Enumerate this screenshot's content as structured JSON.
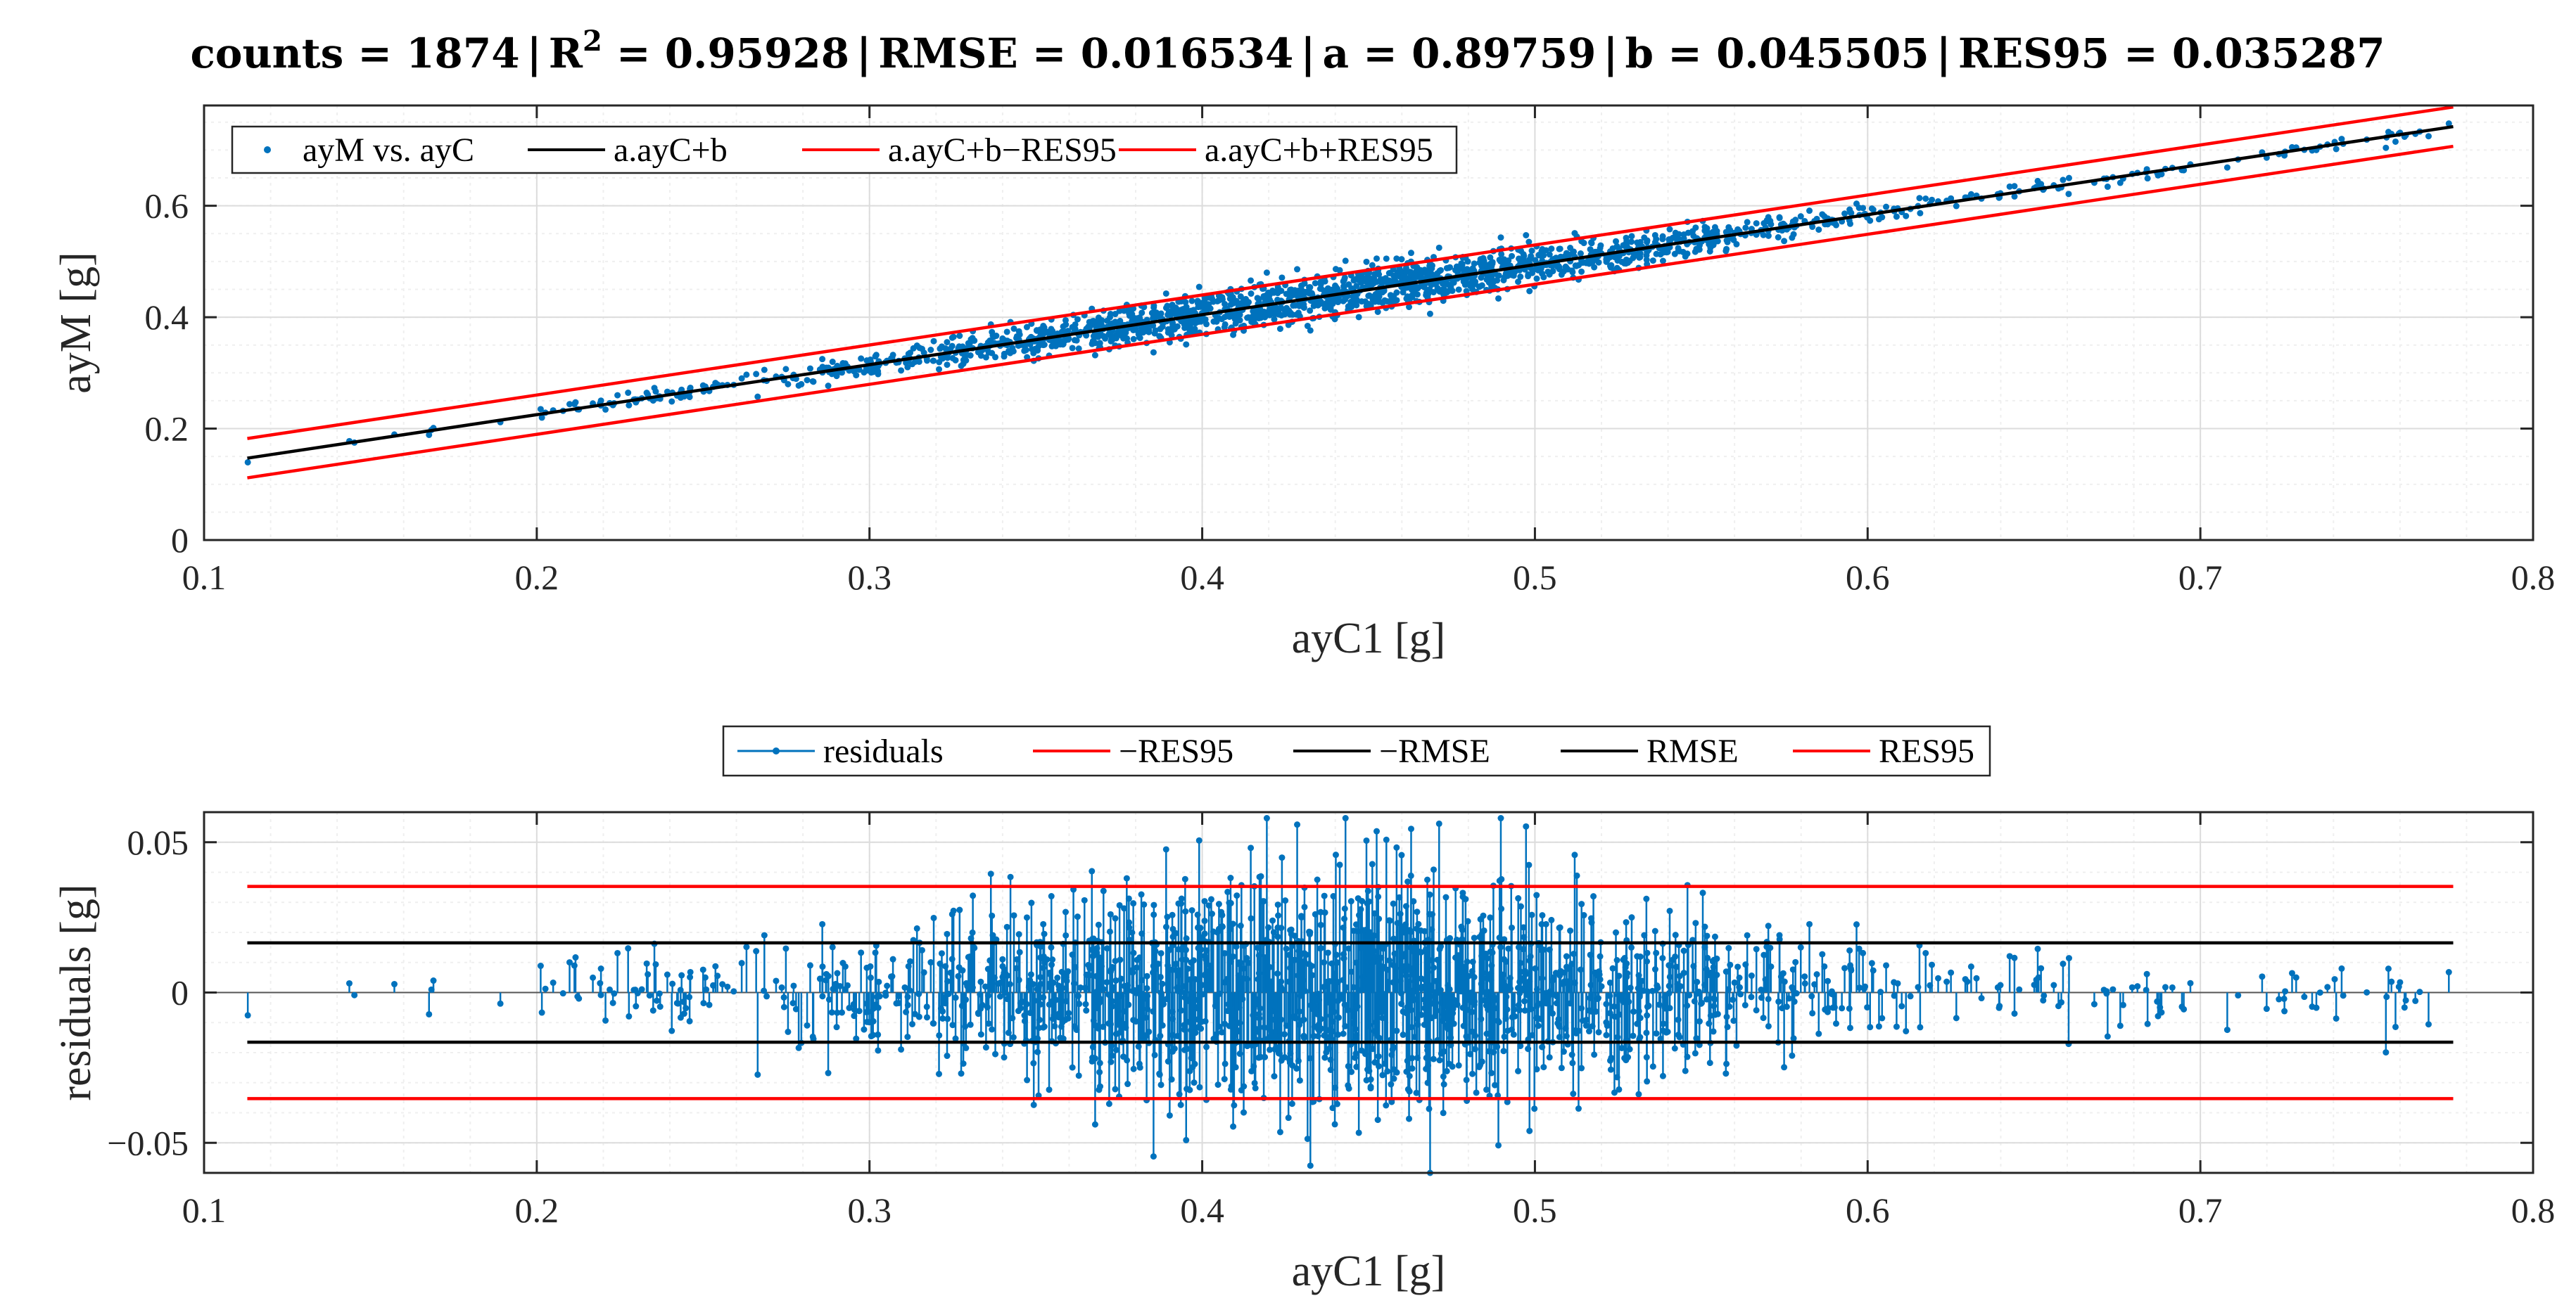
{
  "title": {
    "counts_label": "counts = 1874",
    "r2_symbol": "R",
    "r2_exponent": "2",
    "r2_value": " = 0.95928",
    "rmse_label": "RMSE = 0.016534",
    "a_label": "a = 0.89759",
    "b_label": "b = 0.045505",
    "res95_label": "RES95 = 0.035287",
    "separator": "|"
  },
  "colors": {
    "points": "#0072BD",
    "fit": "#000000",
    "bounds": "#FF0000",
    "grid_major": "#dcdcdc",
    "grid_minor": "#efefef",
    "axis": "#262626"
  },
  "chart_data": [
    {
      "type": "scatter",
      "id": "top",
      "xlabel": "ayC1 [g]",
      "ylabel": "ayM [g]",
      "xlim": [
        0.1,
        0.8
      ],
      "ylim": [
        0,
        0.78
      ],
      "xticks": [
        0.1,
        0.2,
        0.3,
        0.4,
        0.5,
        0.6,
        0.7,
        0.8
      ],
      "xtick_labels": [
        "0.1",
        "0.2",
        "0.3",
        "0.4",
        "0.5",
        "0.6",
        "0.7",
        "0.8"
      ],
      "yticks": [
        0,
        0.2,
        0.4,
        0.6
      ],
      "ytick_labels": [
        "0",
        "0.2",
        "0.4",
        "0.6"
      ],
      "grid": true,
      "legend_position": "top-left",
      "count": 1874,
      "fit": {
        "a": 0.89759,
        "b": 0.045505,
        "res95": 0.035287,
        "x_range": [
          0.113,
          0.776
        ]
      },
      "series": [
        {
          "name": "ayM vs. ayC",
          "kind": "points"
        },
        {
          "name": "a.ayC+b",
          "kind": "line",
          "offset": 0
        },
        {
          "name": "a.ayC+b−RES95",
          "kind": "line",
          "offset": -0.035287
        },
        {
          "name": "a.ayC+b+RES95",
          "kind": "line",
          "offset": 0.035287
        }
      ]
    },
    {
      "type": "stem",
      "id": "bottom",
      "xlabel": "ayC1 [g]",
      "ylabel": "residuals [g]",
      "xlim": [
        0.1,
        0.8
      ],
      "ylim": [
        -0.06,
        0.06
      ],
      "xticks": [
        0.1,
        0.2,
        0.3,
        0.4,
        0.5,
        0.6,
        0.7,
        0.8
      ],
      "xtick_labels": [
        "0.1",
        "0.2",
        "0.3",
        "0.4",
        "0.5",
        "0.6",
        "0.7",
        "0.8"
      ],
      "yticks": [
        -0.05,
        0,
        0.05
      ],
      "ytick_labels": [
        "−0.05",
        "0",
        "0.05"
      ],
      "grid": true,
      "legend_position": "above",
      "series": [
        {
          "name": "residuals",
          "kind": "stem"
        },
        {
          "name": "−RES95",
          "kind": "line",
          "value": -0.035287
        },
        {
          "name": "−RMSE",
          "kind": "line",
          "value": -0.016534
        },
        {
          "name": "RMSE",
          "kind": "line",
          "value": 0.016534
        },
        {
          "name": "RES95",
          "kind": "line",
          "value": 0.035287
        }
      ]
    }
  ]
}
